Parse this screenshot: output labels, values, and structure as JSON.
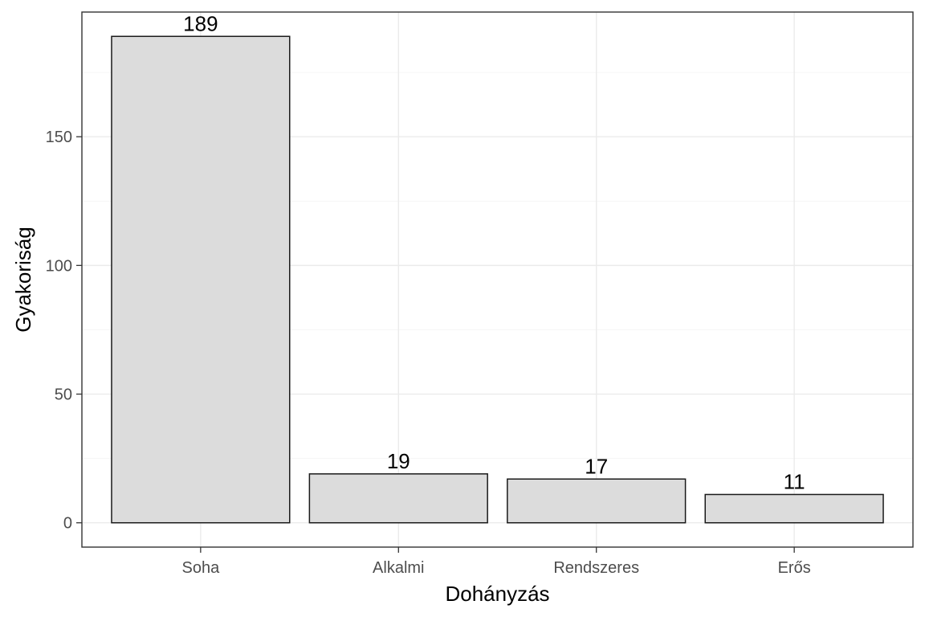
{
  "chart_data": {
    "type": "bar",
    "categories": [
      "Soha",
      "Alkalmi",
      "Rendszeres",
      "Erős"
    ],
    "values": [
      189,
      19,
      17,
      11
    ],
    "data_labels": [
      "189",
      "19",
      "17",
      "11"
    ],
    "xlabel": "Dohányzás",
    "ylabel": "Gyakoriság",
    "ylim": [
      -9.45,
      198.45
    ],
    "y_ticks": [
      0,
      50,
      100,
      150
    ],
    "y_tick_labels": [
      "0",
      "50",
      "100",
      "150"
    ],
    "grid": true,
    "colors": {
      "bar_fill": "#dcdcdc",
      "bar_outline": "#1a1a1a"
    }
  }
}
